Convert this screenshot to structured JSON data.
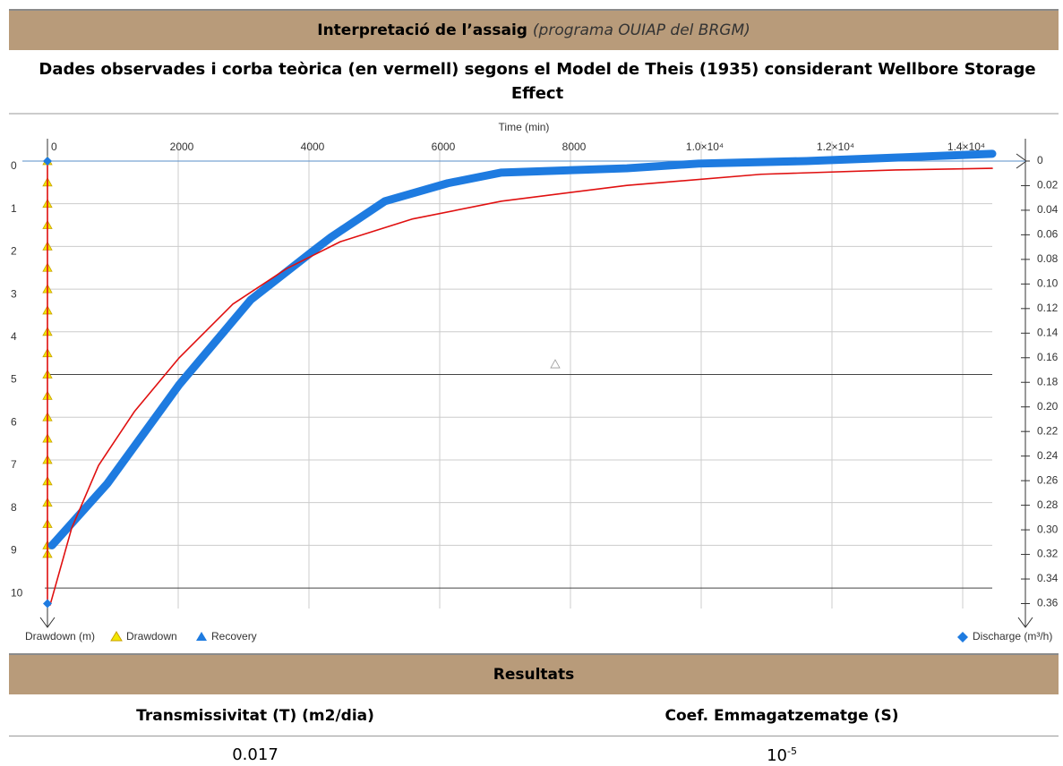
{
  "header": {
    "title": "Interpretació de l’assaig",
    "subtitle": "(programa OUIAP del BRGM)"
  },
  "chart_data": {
    "type": "line",
    "title": "Dades observades i corba teòrica (en vermell) segons el Model de Theis (1935) considerant Wellbore Storage Effect",
    "x_label": "Time (min)",
    "y_label": "Drawdown (m)",
    "y2_label": "Discharge (m³/h)",
    "xlim": [
      -41,
      14452
    ],
    "ylim": [
      -0.46,
      10.48
    ],
    "y_inverted": true,
    "y2lim": [
      -0.016,
      0.364
    ],
    "grid": true,
    "xticks": [
      0,
      2000,
      4000,
      6000,
      8000,
      {
        "value": 10000,
        "label": "1.0×10⁴"
      },
      {
        "value": 12000,
        "label": "1.2×10⁴"
      },
      {
        "value": 14000,
        "label": "1.4×10⁴"
      }
    ],
    "yticks": [
      0,
      1,
      2,
      3,
      4,
      5,
      6,
      7,
      8,
      9,
      10
    ],
    "y2ticks": [
      0,
      {
        "value": 0.02,
        "label": "0.02"
      },
      {
        "value": 0.04,
        "label": "0.04"
      },
      {
        "value": 0.06,
        "label": "0.06"
      },
      {
        "value": 0.08,
        "label": "0.08"
      },
      {
        "value": 0.1,
        "label": "0.10"
      },
      {
        "value": 0.12,
        "label": "0.12"
      },
      {
        "value": 0.14,
        "label": "0.14"
      },
      {
        "value": 0.16,
        "label": "0.16"
      },
      {
        "value": 0.18,
        "label": "0.18"
      },
      {
        "value": 0.2,
        "label": "0.20"
      },
      {
        "value": 0.22,
        "label": "0.22"
      },
      {
        "value": 0.24,
        "label": "0.24"
      },
      {
        "value": 0.26,
        "label": "0.26"
      },
      {
        "value": 0.28,
        "label": "0.28"
      },
      {
        "value": 0.3,
        "label": "0.30"
      },
      {
        "value": 0.32,
        "label": "0.32"
      },
      {
        "value": 0.34,
        "label": "0.34"
      },
      {
        "value": 0.36,
        "label": "0.36"
      }
    ],
    "series": [
      {
        "name": "Drawdown",
        "color": "#f2e600",
        "marker": "triangle",
        "x": [
          0,
          0,
          0,
          0,
          0,
          0,
          0,
          0,
          0,
          0,
          0,
          0,
          0,
          0,
          0,
          0,
          0,
          0,
          0,
          0,
          7767
        ],
        "values": [
          0,
          0.5,
          1,
          1.5,
          2,
          2.5,
          3,
          3.5,
          4,
          4.5,
          5,
          5.5,
          6,
          6.5,
          7,
          7.5,
          8,
          8.5,
          9,
          9.2,
          4.76
        ]
      },
      {
        "name": "Recovery",
        "color": "#1e7be0",
        "marker": "line",
        "x": [
          70,
          918,
          2014,
          3110,
          4068,
          4342,
          5164,
          6123,
          6945,
          8863,
          9959,
          11603,
          12973,
          14452
        ],
        "values": [
          9.0,
          7.55,
          5.24,
          3.25,
          2.1,
          1.78,
          0.94,
          0.52,
          0.27,
          0.17,
          0.06,
          0,
          -0.08,
          -0.17
        ]
      },
      {
        "color": "#e01010",
        "marker": "thin",
        "x": [
          0,
          0,
          40,
          370,
          781,
          1329,
          2014,
          2836,
          3658,
          4479,
          5575,
          6945,
          8863,
          10918,
          12973,
          14452
        ],
        "values": [
          0,
          10.4,
          10.4,
          8.6,
          7.13,
          5.87,
          4.61,
          3.35,
          2.52,
          1.89,
          1.36,
          0.94,
          0.57,
          0.31,
          0.21,
          0.17
        ]
      },
      {
        "name": "Discharge (m³/h)",
        "color": "#1e7be0",
        "marker": "diamond",
        "axis": "y2",
        "x": [
          0,
          0
        ],
        "values": [
          0,
          0.36
        ]
      }
    ]
  },
  "results": {
    "title": "Resultats",
    "headers": [
      "Transmissivitat (T) (m2/dia)",
      "Coef. Emmagatzematge (S)"
    ],
    "values": [
      "0.017",
      {
        "base": "10",
        "exponent": "-5"
      }
    ]
  }
}
